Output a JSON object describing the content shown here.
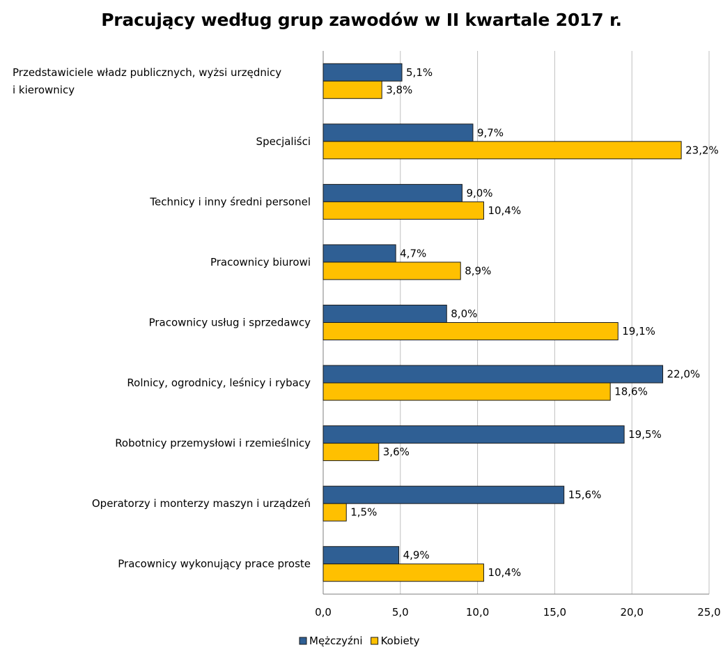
{
  "chart_data": {
    "type": "bar",
    "orientation": "horizontal",
    "title": "Pracujący według grup zawodów w II kwartale 2017 r.",
    "categories": [
      [
        "Przedstawiciele władz publicznych, wyżsi urzędnicy",
        "i  kierownicy"
      ],
      [
        "Specjaliści"
      ],
      [
        "Technicy i inny średni personel"
      ],
      [
        "Pracownicy biurowi"
      ],
      [
        "Pracownicy usług i sprzedawcy"
      ],
      [
        "Rolnicy, ogrodnicy, leśnicy i rybacy"
      ],
      [
        "Robotnicy przemysłowi i rzemieślnicy"
      ],
      [
        "Operatorzy i monterzy maszyn i urządzeń"
      ],
      [
        "Pracownicy wykonujący prace proste"
      ]
    ],
    "series": [
      {
        "name": "Mężczyźni",
        "color": "#2f5f94",
        "values": [
          5.1,
          9.7,
          9.0,
          4.7,
          8.0,
          22.0,
          19.5,
          15.6,
          4.9
        ],
        "labels": [
          "5,1%",
          "9,7%",
          "9,0%",
          "4,7%",
          "8,0%",
          "22,0%",
          "19,5%",
          "15,6%",
          "4,9%"
        ]
      },
      {
        "name": "Kobiety",
        "color": "#ffc000",
        "values": [
          3.8,
          23.2,
          10.4,
          8.9,
          19.1,
          18.6,
          3.6,
          1.5,
          10.4
        ],
        "labels": [
          "3,8%",
          "23,2%",
          "10,4%",
          "8,9%",
          "19,1%",
          "18,6%",
          "3,6%",
          "1,5%",
          "10,4%"
        ]
      }
    ],
    "xlim": [
      0,
      25
    ],
    "xticks": [
      0,
      5,
      10,
      15,
      20,
      25
    ],
    "xtick_labels": [
      "0,0",
      "5,0",
      "10,0",
      "15,0",
      "20,0",
      "25,0"
    ],
    "grid": true,
    "legend": "bottom"
  }
}
